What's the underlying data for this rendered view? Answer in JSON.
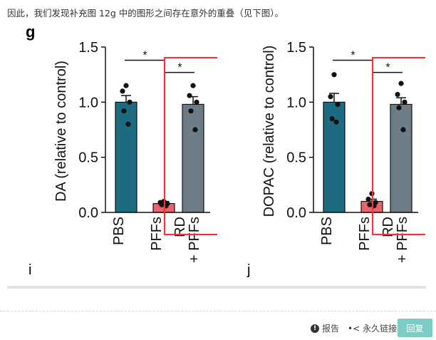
{
  "post_text": "因此，我们发现补充图 12g 中的图形之间存在意外的重叠（见下图）。",
  "figure": {
    "panel_letter": "g",
    "sub_letters": [
      "i",
      "j"
    ]
  },
  "colors": {
    "pbs": "#1c6b81",
    "pffs": "#e8636b",
    "rd_pffs": "#6d7d87",
    "highlight": "#e8383d",
    "reply_button": "#7ecbc4"
  },
  "chart_data": [
    {
      "type": "bar",
      "ylabel": "DA (relative to control)",
      "ylim": [
        0.0,
        1.5
      ],
      "yticks": [
        "0.0",
        "0.5",
        "1.0",
        "1.5"
      ],
      "categories": [
        "PBS",
        "PFFs",
        "RD\n+ PFFs"
      ],
      "values": [
        1.0,
        0.08,
        0.98
      ],
      "errors": [
        0.06,
        0.02,
        0.07
      ],
      "points": [
        [
          1.15,
          1.1,
          1.0,
          0.92,
          0.8
        ],
        [
          0.1,
          0.09,
          0.08,
          0.07,
          0.06
        ],
        [
          1.15,
          1.06,
          1.0,
          0.92,
          0.75
        ]
      ],
      "significance": [
        "*",
        "*"
      ]
    },
    {
      "type": "bar",
      "ylabel": "DOPAC (relative to control)",
      "ylim": [
        0.0,
        1.5
      ],
      "yticks": [
        "0.0",
        "0.5",
        "1.0",
        "1.5"
      ],
      "categories": [
        "PBS",
        "PFFs",
        "RD\n+ PFFs"
      ],
      "values": [
        1.0,
        0.1,
        0.98
      ],
      "errors": [
        0.08,
        0.02,
        0.06
      ],
      "points": [
        [
          1.25,
          1.05,
          0.98,
          0.85,
          0.82
        ],
        [
          0.17,
          0.12,
          0.09,
          0.07,
          0.06
        ],
        [
          1.17,
          1.07,
          1.0,
          0.95,
          0.75
        ]
      ],
      "significance": [
        "*",
        "*"
      ]
    }
  ],
  "footer": {
    "report_label": "报告",
    "report_icon": "exclamation-icon",
    "permalink_label": "永久链接",
    "permalink_icon": "share-icon",
    "reply_label": "回复"
  }
}
